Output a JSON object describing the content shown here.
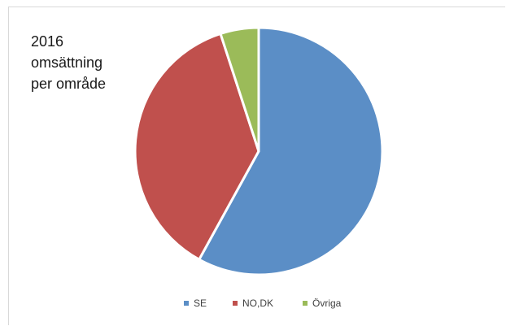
{
  "chart_data": {
    "type": "pie",
    "title_lines": [
      "2016",
      "omsättning",
      "per område"
    ],
    "series": [
      {
        "name": "SE",
        "value": 58,
        "color": "#5b8ec6"
      },
      {
        "name": "NO,DK",
        "value": 37,
        "color": "#c0504d"
      },
      {
        "name": "Övriga",
        "value": 5,
        "color": "#9bbb59"
      }
    ],
    "legend_position": "bottom"
  }
}
